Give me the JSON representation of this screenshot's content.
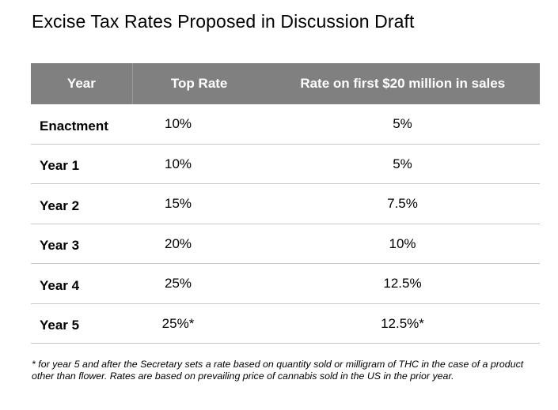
{
  "title": "Excise Tax Rates Proposed in Discussion Draft",
  "table": {
    "headers": {
      "year": "Year",
      "top_rate": "Top Rate",
      "first_20m": "Rate on first $20 million in sales"
    },
    "rows": [
      {
        "year": "Enactment",
        "top_rate": "10%",
        "first_20m": "5%"
      },
      {
        "year": "Year 1",
        "top_rate": "10%",
        "first_20m": "5%"
      },
      {
        "year": "Year 2",
        "top_rate": "15%",
        "first_20m": "7.5%"
      },
      {
        "year": "Year 3",
        "top_rate": "20%",
        "first_20m": "10%"
      },
      {
        "year": "Year 4",
        "top_rate": "25%",
        "first_20m": "12.5%"
      },
      {
        "year": "Year 5",
        "top_rate": "25%*",
        "first_20m": "12.5%*"
      }
    ]
  },
  "footnote": "* for year 5 and after the Secretary sets a rate based on quantity sold or milligram of THC in the case of a product other than flower. Rates are based on prevailing price of cannabis sold in the US in the prior year."
}
